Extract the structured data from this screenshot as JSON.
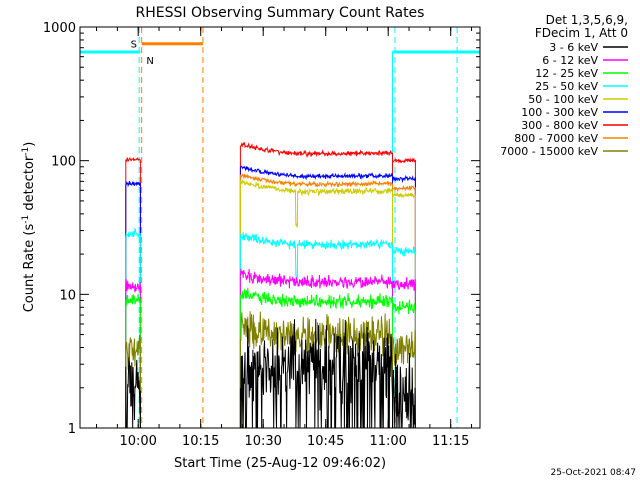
{
  "chart_data": {
    "type": "line",
    "title": "RHESSI Observing Summary Count Rates",
    "xlabel": "Start Time (25-Aug-12 09:46:02)",
    "ylabel_main": "Count Rate (s",
    "ylabel_sup1": "-1",
    "ylabel_mid": " detector",
    "ylabel_sup2": "-1",
    "ylabel_end": ")",
    "x_unit": "minutes after 09:46:02",
    "xlim": [
      0,
      96
    ],
    "ylim": [
      1,
      1000
    ],
    "y_scale": "log",
    "x_ticks": [
      {
        "v": 13.97,
        "label": "10:00"
      },
      {
        "v": 28.97,
        "label": "10:15"
      },
      {
        "v": 43.97,
        "label": "10:30"
      },
      {
        "v": 58.97,
        "label": "10:45"
      },
      {
        "v": 73.97,
        "label": "11:00"
      },
      {
        "v": 88.97,
        "label": "11:15"
      }
    ],
    "y_ticks": [
      {
        "v": 1,
        "label": "1"
      },
      {
        "v": 10,
        "label": "10"
      },
      {
        "v": 100,
        "label": "100"
      },
      {
        "v": 1000,
        "label": "1000"
      }
    ],
    "legend_header": [
      "Det 1,3,5,6,9,",
      "FDecim 1, Att 0"
    ],
    "legend_position": "right",
    "segments": [
      [
        11,
        14.5
      ],
      [
        38.5,
        75
      ],
      [
        75,
        80.5
      ]
    ],
    "series": [
      {
        "name": "3 - 6 keV",
        "color": "#000000",
        "levels": [
          2.0,
          3.0,
          1.8
        ]
      },
      {
        "name": "6 - 12 keV",
        "color": "#ff00ff",
        "levels": [
          11.5,
          12.5,
          12.0
        ]
      },
      {
        "name": "12 - 25 keV",
        "color": "#00ff00",
        "levels": [
          9.0,
          9.0,
          8.0
        ]
      },
      {
        "name": "25 - 50 keV",
        "color": "#00ffff",
        "levels": [
          28.0,
          24.0,
          21.0
        ]
      },
      {
        "name": "50 - 100 keV",
        "color": "#cccc00",
        "levels": [
          0,
          60.0,
          55.0
        ]
      },
      {
        "name": "100 - 300 keV",
        "color": "#0000ff",
        "levels": [
          67.0,
          78.0,
          73.0
        ]
      },
      {
        "name": "300 - 800 keV",
        "color": "#ff0000",
        "levels": [
          102.0,
          115.0,
          100.0
        ]
      },
      {
        "name": "800 - 7000 keV",
        "color": "#ff8000",
        "levels": [
          0,
          68.0,
          62.0
        ]
      },
      {
        "name": "7000 - 15000 keV",
        "color": "#808000",
        "levels": [
          4.0,
          5.0,
          4.0
        ]
      }
    ],
    "saa_flag": {
      "label": "S",
      "color": "#ff8000",
      "y": 750,
      "x_start": 14.8,
      "x_end": 29.5
    },
    "night_flag": {
      "label": "N",
      "color": "#00ffff",
      "y": 650,
      "intervals": [
        [
          0,
          14.5
        ],
        [
          75,
          96
        ]
      ]
    },
    "cyan_dashed_lines": [
      14.2,
      75.6,
      90.5
    ],
    "orange_dashed_lines": [
      14.8,
      29.5
    ],
    "spike_x": 52.0
  },
  "footer_timestamp": "25-Oct-2021 08:47"
}
